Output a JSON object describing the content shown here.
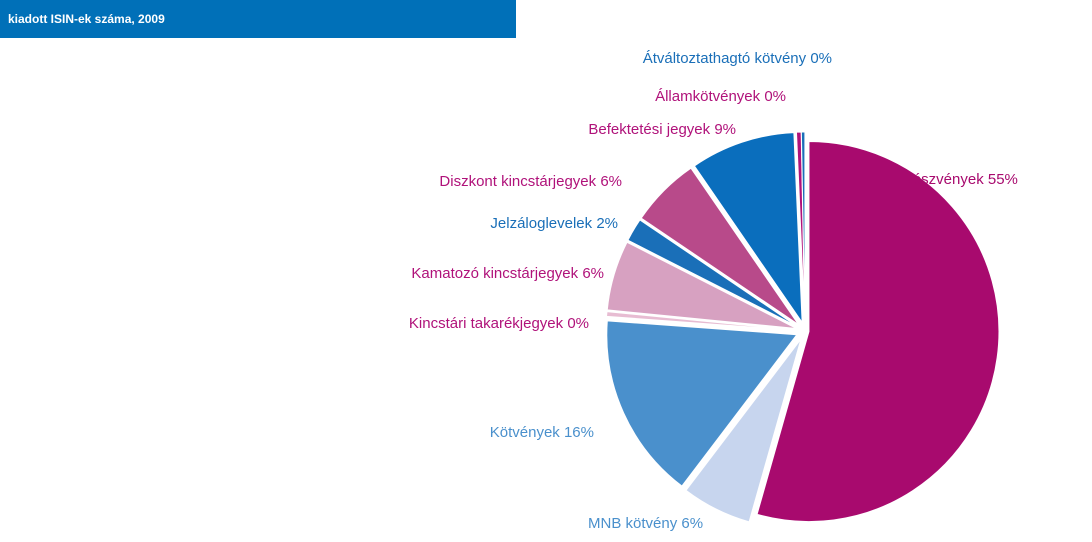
{
  "chart_data": {
    "type": "pie",
    "title": "kiadott ISIN-ek száma, 2009",
    "categories": [
      "Részvények",
      "MNB kötvény",
      "Kötvények",
      "Kincstári takarékjegyek",
      "Kamatozó kincstárjegyek",
      "Jelzáloglevelek",
      "Diszkont kincstárjegyek",
      "Befektetési jegyek",
      "Államkötvények",
      "Átváltoztathagtó kötvény"
    ],
    "values": [
      55,
      6,
      16,
      0.4,
      6,
      2,
      6,
      9,
      0.4,
      0.3
    ],
    "value_labels": [
      "55%",
      "6%",
      "16%",
      "0%",
      "6%",
      "2%",
      "6%",
      "9%",
      "0%",
      "0%"
    ],
    "colors": [
      "#a80a6e",
      "#c7d5ee",
      "#4a90cc",
      "#e7bcd2",
      "#d7a1c1",
      "#1a6fb8",
      "#b84a8a",
      "#0a6ebd",
      "#b0127a",
      "#1a6fb8"
    ],
    "label_colors": [
      "#a80a6e",
      "#4a90cc",
      "#4a90cc",
      "#b0127a",
      "#b0127a",
      "#1a6fb8",
      "#b0127a",
      "#b0127a",
      "#b0127a",
      "#1a6fb8"
    ]
  }
}
